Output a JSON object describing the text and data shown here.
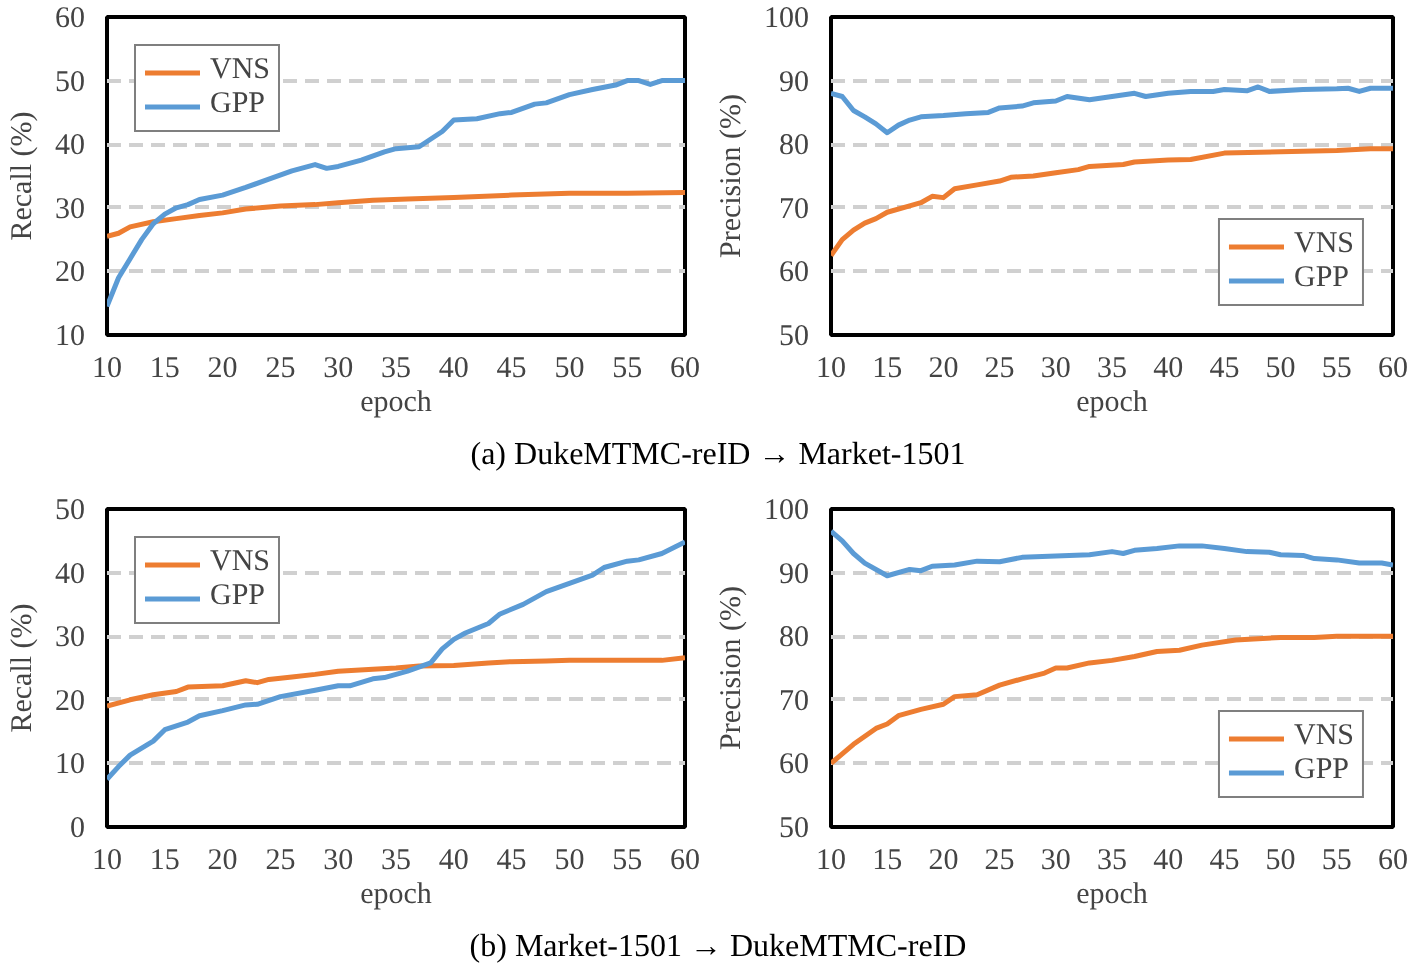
{
  "chart_data": [
    {
      "type": "line",
      "xlabel": "epoch",
      "ylabel": "Recall (%)",
      "xlim": [
        10,
        60
      ],
      "xticks": [
        10,
        15,
        20,
        25,
        30,
        35,
        40,
        45,
        50,
        55,
        60
      ],
      "ylim": [
        10,
        60
      ],
      "yticks": [
        10,
        20,
        30,
        40,
        50,
        60
      ],
      "grid": "y",
      "legend": "top left",
      "line_style": "solid",
      "annotations": [
        "(a) DukeMTMC-reID → Market-1501"
      ],
      "series": [
        {
          "name": "VNS",
          "color": "#ed7d31",
          "x": [
            10,
            11,
            12,
            14,
            16,
            18,
            20,
            22,
            25,
            28,
            30,
            33,
            36,
            40,
            45,
            50,
            55,
            60
          ],
          "values": [
            25.5,
            26,
            27,
            27.8,
            28.3,
            28.8,
            29.2,
            29.8,
            30.3,
            30.5,
            30.8,
            31.2,
            31.4,
            31.6,
            32,
            32.3,
            32.3,
            32.4
          ]
        },
        {
          "name": "GPP",
          "color": "#5b9bd5",
          "x": [
            10,
            11,
            12,
            13,
            14,
            15,
            16,
            17,
            18,
            20,
            22,
            24,
            26,
            28,
            29,
            30,
            32,
            34,
            35,
            37,
            39,
            40,
            42,
            44,
            45,
            47,
            48,
            50,
            52,
            54,
            55,
            56,
            57,
            58,
            60
          ],
          "values": [
            14.5,
            19,
            22,
            25,
            27.5,
            29,
            30,
            30.5,
            31.3,
            32,
            33.2,
            34.5,
            35.8,
            36.8,
            36.2,
            36.5,
            37.5,
            38.8,
            39.3,
            39.6,
            42,
            43.8,
            44,
            44.8,
            45,
            46.3,
            46.5,
            47.8,
            48.6,
            49.3,
            50,
            50,
            49.4,
            50,
            50
          ]
        }
      ]
    },
    {
      "type": "line",
      "xlabel": "epoch",
      "ylabel": "Precision (%)",
      "xlim": [
        10,
        60
      ],
      "xticks": [
        10,
        15,
        20,
        25,
        30,
        35,
        40,
        45,
        50,
        55,
        60
      ],
      "ylim": [
        50,
        100
      ],
      "yticks": [
        50,
        60,
        70,
        80,
        90,
        100
      ],
      "grid": "y",
      "legend": "bottom right",
      "line_style": "solid",
      "series": [
        {
          "name": "VNS",
          "color": "#ed7d31",
          "x": [
            10,
            11,
            12,
            13,
            14,
            15,
            17,
            18,
            19,
            20,
            21,
            23,
            25,
            26,
            28,
            30,
            32,
            33,
            36,
            37,
            40,
            42,
            45,
            50,
            55,
            58,
            60
          ],
          "values": [
            62.5,
            65,
            66.5,
            67.6,
            68.3,
            69.3,
            70.3,
            70.8,
            71.8,
            71.6,
            73,
            73.6,
            74.2,
            74.8,
            75,
            75.5,
            76,
            76.5,
            76.8,
            77.2,
            77.5,
            77.6,
            78.6,
            78.8,
            79,
            79.3,
            79.3
          ]
        },
        {
          "name": "GPP",
          "color": "#5b9bd5",
          "x": [
            10,
            11,
            12,
            13,
            14,
            15,
            16,
            17,
            18,
            20,
            22,
            24,
            25,
            27,
            28,
            30,
            31,
            33,
            35,
            37,
            38,
            40,
            42,
            44,
            45,
            47,
            48,
            49,
            52,
            55,
            56,
            57,
            58,
            60
          ],
          "values": [
            88,
            87.5,
            85.3,
            84.3,
            83.2,
            81.8,
            83,
            83.8,
            84.3,
            84.5,
            84.8,
            85,
            85.7,
            86,
            86.5,
            86.8,
            87.5,
            87,
            87.5,
            88,
            87.5,
            88,
            88.3,
            88.3,
            88.6,
            88.4,
            89,
            88.3,
            88.6,
            88.7,
            88.8,
            88.3,
            88.8,
            88.8
          ]
        }
      ]
    },
    {
      "type": "line",
      "xlabel": "epoch",
      "ylabel": "Recall (%)",
      "xlim": [
        10,
        60
      ],
      "xticks": [
        10,
        15,
        20,
        25,
        30,
        35,
        40,
        45,
        50,
        55,
        60
      ],
      "ylim": [
        0,
        50
      ],
      "yticks": [
        0,
        10,
        20,
        30,
        40,
        50
      ],
      "grid": "y",
      "legend": "top left",
      "line_style": "solid",
      "annotations": [
        "(b) Market-1501 → DukeMTMC-reID"
      ],
      "series": [
        {
          "name": "VNS",
          "color": "#ed7d31",
          "x": [
            10,
            12,
            14,
            16,
            17,
            20,
            22,
            23,
            24,
            26,
            28,
            30,
            33,
            35,
            37,
            40,
            43,
            45,
            48,
            50,
            55,
            58,
            60
          ],
          "values": [
            19,
            20,
            20.8,
            21.3,
            22,
            22.2,
            23,
            22.7,
            23.2,
            23.6,
            24,
            24.5,
            24.8,
            25,
            25.3,
            25.4,
            25.8,
            26,
            26.1,
            26.2,
            26.2,
            26.2,
            26.6
          ]
        },
        {
          "name": "GPP",
          "color": "#5b9bd5",
          "x": [
            10,
            11,
            12,
            14,
            15,
            17,
            18,
            20,
            22,
            23,
            25,
            28,
            30,
            31,
            33,
            34,
            36,
            38,
            39,
            40,
            41,
            43,
            44,
            46,
            48,
            50,
            52,
            53,
            55,
            56,
            58,
            60
          ],
          "values": [
            7.5,
            9.5,
            11.3,
            13.5,
            15.3,
            16.5,
            17.5,
            18.3,
            19.2,
            19.3,
            20.5,
            21.5,
            22.2,
            22.2,
            23.3,
            23.5,
            24.5,
            25.8,
            28,
            29.5,
            30.5,
            32,
            33.5,
            35,
            37,
            38.3,
            39.6,
            40.8,
            41.8,
            42,
            43,
            44.8
          ]
        }
      ]
    },
    {
      "type": "line",
      "xlabel": "epoch",
      "ylabel": "Precision (%)",
      "xlim": [
        10,
        60
      ],
      "xticks": [
        10,
        15,
        20,
        25,
        30,
        35,
        40,
        45,
        50,
        55,
        60
      ],
      "ylim": [
        50,
        100
      ],
      "yticks": [
        50,
        60,
        70,
        80,
        90,
        100
      ],
      "grid": "y",
      "legend": "bottom right",
      "line_style": "solid",
      "series": [
        {
          "name": "VNS",
          "color": "#ed7d31",
          "x": [
            10,
            11,
            12,
            14,
            15,
            16,
            18,
            20,
            21,
            23,
            25,
            27,
            29,
            30,
            31,
            33,
            35,
            37,
            39,
            41,
            43,
            46,
            48,
            50,
            53,
            55,
            58,
            60
          ],
          "values": [
            60,
            61.5,
            63,
            65.5,
            66.2,
            67.5,
            68.5,
            69.3,
            70.5,
            70.8,
            72.3,
            73.3,
            74.2,
            75,
            75,
            75.8,
            76.2,
            76.8,
            77.6,
            77.8,
            78.6,
            79.4,
            79.6,
            79.8,
            79.8,
            80,
            80,
            80
          ]
        },
        {
          "name": "GPP",
          "color": "#5b9bd5",
          "x": [
            10,
            11,
            12,
            13,
            15,
            17,
            18,
            19,
            21,
            23,
            25,
            27,
            30,
            33,
            35,
            36,
            37,
            39,
            41,
            43,
            45,
            47,
            49,
            50,
            52,
            53,
            55,
            57,
            59,
            60
          ],
          "values": [
            96.5,
            95,
            93,
            91.5,
            89.5,
            90.5,
            90.3,
            91,
            91.2,
            91.8,
            91.7,
            92.4,
            92.6,
            92.8,
            93.3,
            93,
            93.5,
            93.8,
            94.2,
            94.2,
            93.8,
            93.3,
            93.2,
            92.8,
            92.7,
            92.2,
            92,
            91.5,
            91.5,
            91.2
          ]
        }
      ]
    }
  ]
}
